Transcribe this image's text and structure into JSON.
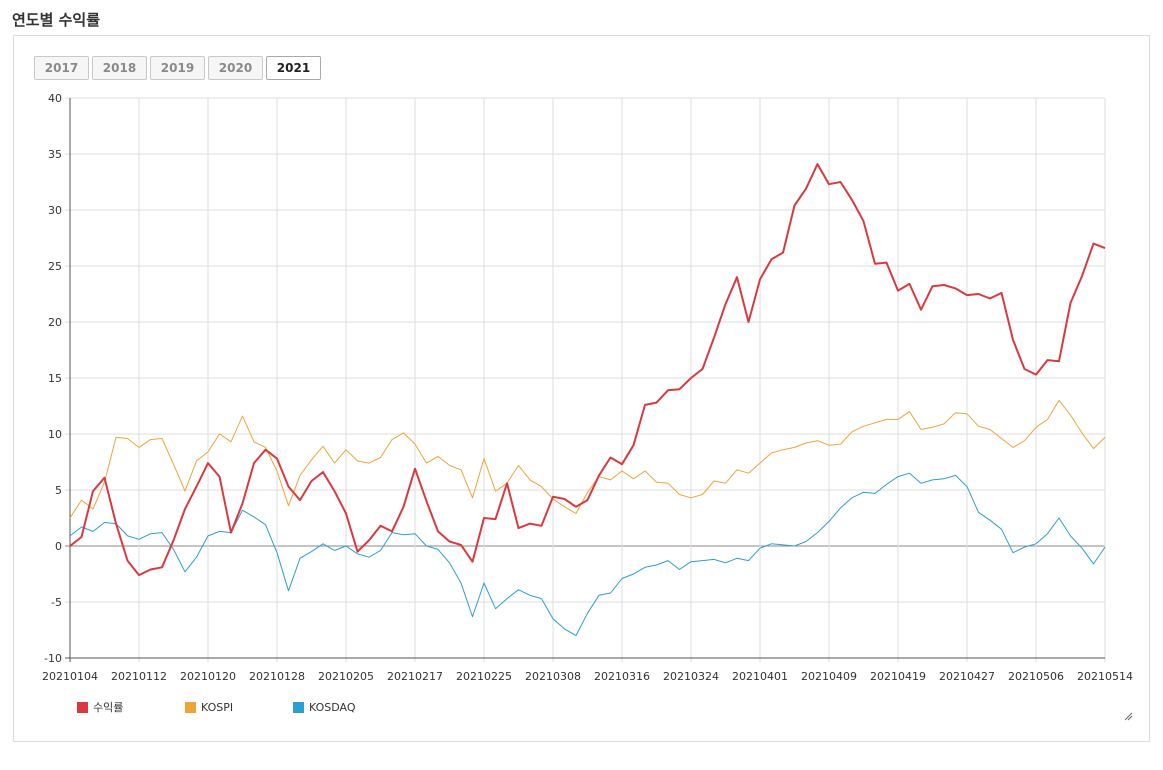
{
  "title": "연도별 수익률",
  "year_tabs": [
    {
      "label": "2017",
      "active": false
    },
    {
      "label": "2018",
      "active": false
    },
    {
      "label": "2019",
      "active": false
    },
    {
      "label": "2020",
      "active": false
    },
    {
      "label": "2021",
      "active": true
    }
  ],
  "colors": {
    "returns": "#d93a3f",
    "kospi": "#efa43a",
    "kosdaq": "#2c9fd0"
  },
  "chart_data": {
    "type": "line",
    "title": "",
    "xlabel": "",
    "ylabel": "",
    "ylim": [
      -10,
      40
    ],
    "yticks": [
      -10,
      -5,
      0,
      5,
      10,
      15,
      20,
      25,
      30,
      35,
      40
    ],
    "xtick_labels": [
      "20210104",
      "20210112",
      "20210120",
      "20210128",
      "20210205",
      "20210217",
      "20210225",
      "20210308",
      "20210316",
      "20210324",
      "20210401",
      "20210409",
      "20210419",
      "20210427",
      "20210506",
      "20210514"
    ],
    "xtick_index": [
      0,
      6,
      12,
      18,
      24,
      30,
      36,
      42,
      48,
      54,
      60,
      66,
      72,
      78,
      84,
      90
    ],
    "grid": true,
    "legend_position": "bottom-left",
    "series": [
      {
        "name": "수익률",
        "color": "#d93a3f",
        "values": [
          0,
          0.8,
          4.9,
          6.1,
          2.0,
          -1.3,
          -2.6,
          -2.1,
          -1.9,
          0.5,
          3.3,
          5.3,
          7.4,
          6.2,
          1.2,
          3.8,
          7.4,
          8.6,
          7.8,
          5.3,
          4.1,
          5.8,
          6.6,
          4.9,
          2.9,
          -0.5,
          0.5,
          1.8,
          1.3,
          3.5,
          6.9,
          4.0,
          1.3,
          0.4,
          0.1,
          -1.4,
          2.5,
          2.4,
          5.6,
          1.6,
          2.0,
          1.8,
          4.4,
          4.2,
          3.5,
          4.1,
          6.3,
          7.9,
          7.3,
          9.0,
          12.6,
          12.8,
          13.9,
          14.0,
          15.0,
          15.8,
          18.6,
          21.6,
          24.0,
          20.0,
          23.8,
          25.6,
          26.2,
          30.4,
          31.9,
          34.1,
          32.3,
          32.5,
          30.9,
          29.0,
          25.2,
          25.3,
          22.8,
          23.4,
          21.1,
          23.2,
          23.3,
          23.0,
          22.4,
          22.5,
          22.1,
          22.6,
          18.4,
          15.8,
          15.3,
          16.6,
          16.5,
          21.7,
          24.1,
          27.0,
          26.6
        ]
      },
      {
        "name": "KOSPI",
        "color": "#efa43a",
        "values": [
          2.5,
          4.1,
          3.3,
          5.7,
          9.7,
          9.6,
          8.8,
          9.5,
          9.6,
          7.3,
          4.9,
          7.6,
          8.4,
          10.0,
          9.3,
          11.6,
          9.3,
          8.8,
          6.7,
          3.6,
          6.3,
          7.7,
          8.9,
          7.4,
          8.6,
          7.6,
          7.4,
          7.9,
          9.5,
          10.1,
          9.1,
          7.4,
          8.0,
          7.2,
          6.8,
          4.3,
          7.8,
          4.9,
          5.6,
          7.2,
          5.9,
          5.3,
          4.2,
          3.5,
          2.9,
          4.8,
          6.2,
          5.9,
          6.7,
          6.0,
          6.7,
          5.7,
          5.6,
          4.6,
          4.3,
          4.6,
          5.8,
          5.6,
          6.8,
          6.5,
          7.4,
          8.3,
          8.6,
          8.8,
          9.2,
          9.4,
          9.0,
          9.1,
          10.2,
          10.7,
          11.0,
          11.3,
          11.3,
          12.0,
          10.4,
          10.6,
          10.9,
          11.9,
          11.8,
          10.7,
          10.4,
          9.6,
          8.8,
          9.4,
          10.6,
          11.3,
          13.0,
          11.7,
          10.1,
          8.7,
          9.7
        ]
      },
      {
        "name": "KOSDAQ",
        "color": "#2c9fd0",
        "values": [
          0.9,
          1.7,
          1.3,
          2.1,
          2.0,
          0.9,
          0.6,
          1.1,
          1.2,
          -0.3,
          -2.3,
          -1.0,
          0.9,
          1.3,
          1.2,
          3.2,
          2.6,
          1.9,
          -0.6,
          -4.0,
          -1.1,
          -0.5,
          0.2,
          -0.4,
          0.0,
          -0.7,
          -1.0,
          -0.4,
          1.2,
          1.0,
          1.1,
          0.0,
          -0.3,
          -1.5,
          -3.3,
          -6.3,
          -3.3,
          -5.6,
          -4.7,
          -3.9,
          -4.4,
          -4.7,
          -6.5,
          -7.4,
          -8.0,
          -6.0,
          -4.4,
          -4.2,
          -2.9,
          -2.5,
          -1.9,
          -1.7,
          -1.3,
          -2.1,
          -1.4,
          -1.3,
          -1.2,
          -1.5,
          -1.1,
          -1.3,
          -0.2,
          0.2,
          0.1,
          0.0,
          0.4,
          1.2,
          2.2,
          3.4,
          4.3,
          4.8,
          4.7,
          5.5,
          6.2,
          6.5,
          5.6,
          5.9,
          6.0,
          6.3,
          5.3,
          3.0,
          2.3,
          1.5,
          -0.6,
          -0.1,
          0.2,
          1.1,
          2.5,
          0.9,
          -0.2,
          -1.6,
          -0.1
        ]
      }
    ]
  }
}
